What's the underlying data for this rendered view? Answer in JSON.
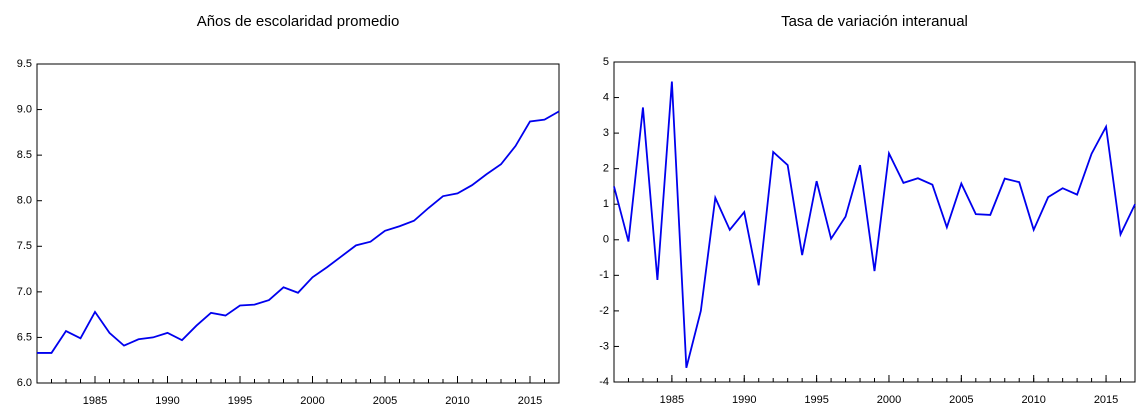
{
  "chart_data": [
    {
      "type": "line",
      "title": "Años de escolaridad promedio",
      "x": [
        1981,
        1982,
        1983,
        1984,
        1985,
        1986,
        1987,
        1988,
        1989,
        1990,
        1991,
        1992,
        1993,
        1994,
        1995,
        1996,
        1997,
        1998,
        1999,
        2000,
        2001,
        2002,
        2003,
        2004,
        2005,
        2006,
        2007,
        2008,
        2009,
        2010,
        2011,
        2012,
        2013,
        2014,
        2015,
        2016,
        2017
      ],
      "series": [
        {
          "color": "#0000ee",
          "values": [
            6.33,
            6.33,
            6.57,
            6.49,
            6.78,
            6.55,
            6.41,
            6.48,
            6.5,
            6.55,
            6.47,
            6.63,
            6.77,
            6.74,
            6.85,
            6.86,
            6.91,
            7.05,
            6.99,
            7.16,
            7.27,
            7.39,
            7.51,
            7.55,
            7.67,
            7.72,
            7.78,
            7.92,
            8.05,
            8.08,
            8.17,
            8.29,
            8.4,
            8.6,
            8.87,
            8.89,
            8.98
          ]
        }
      ],
      "xlim": [
        1981,
        2017
      ],
      "xticks": [
        1985,
        1990,
        1995,
        2000,
        2005,
        2010,
        2015
      ],
      "ylim": [
        6,
        9.5
      ],
      "yticks": [
        {
          "value": 6,
          "label": "6.0"
        },
        6.5,
        {
          "value": 7,
          "label": "7.0"
        },
        7.5,
        {
          "value": 8,
          "label": "8.0"
        },
        8.5,
        {
          "value": 9,
          "label": "9.0"
        },
        9.5
      ]
    },
    {
      "type": "line",
      "title": "Tasa de variación interanual",
      "x": [
        1981,
        1982,
        1983,
        1984,
        1985,
        1986,
        1987,
        1988,
        1989,
        1990,
        1991,
        1992,
        1993,
        1994,
        1995,
        1996,
        1997,
        1998,
        1999,
        2000,
        2001,
        2002,
        2003,
        2004,
        2005,
        2006,
        2007,
        2008,
        2009,
        2010,
        2011,
        2012,
        2013,
        2014,
        2015,
        2016,
        2017
      ],
      "series": [
        {
          "color": "#0000ee",
          "values": [
            1.5,
            -0.05,
            3.72,
            -1.13,
            4.45,
            -3.6,
            -2.0,
            1.18,
            0.28,
            0.78,
            -1.28,
            2.47,
            2.1,
            -0.43,
            1.65,
            0.03,
            0.65,
            2.1,
            -0.88,
            2.43,
            1.6,
            1.73,
            1.55,
            0.35,
            1.58,
            0.72,
            0.7,
            1.72,
            1.62,
            0.28,
            1.2,
            1.45,
            1.27,
            2.42,
            3.18,
            0.15,
            1.0
          ]
        }
      ],
      "xlim": [
        1981,
        2017
      ],
      "xticks": [
        1985,
        1990,
        1995,
        2000,
        2005,
        2010,
        2015
      ],
      "ylim": [
        -4,
        5
      ],
      "yticks": [
        -4,
        -3,
        -2,
        -1,
        0,
        1,
        2,
        3,
        4,
        5
      ]
    }
  ]
}
